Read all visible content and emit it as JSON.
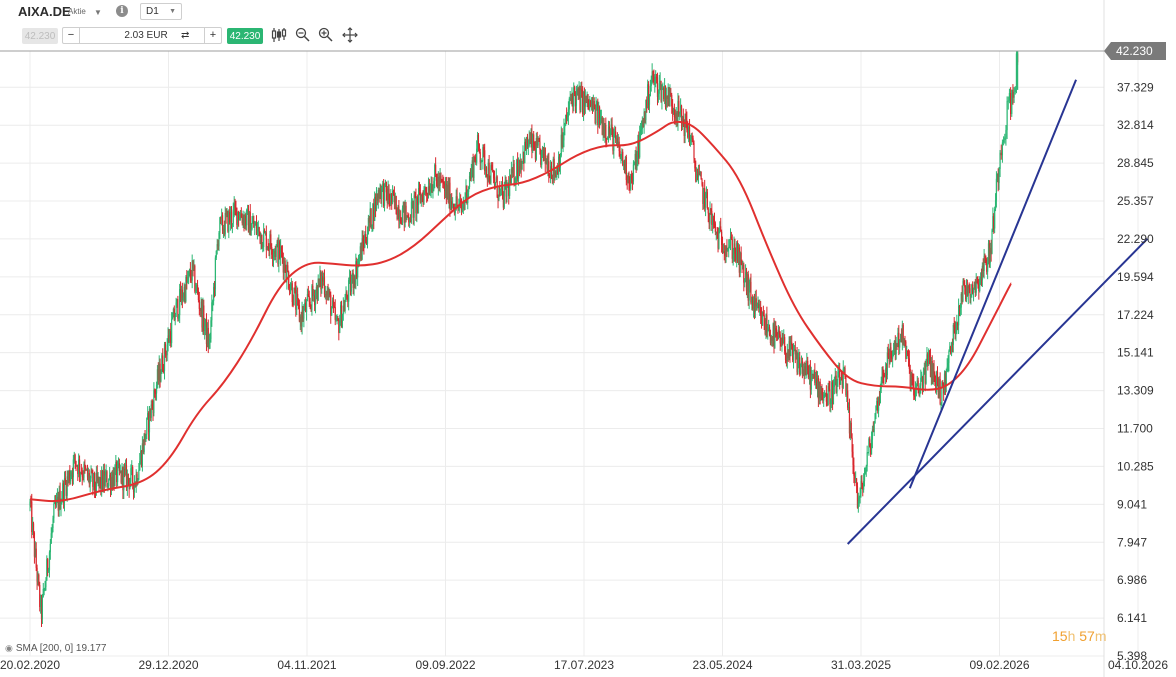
{
  "header": {
    "symbol": "AIXA.DE",
    "symbol_type": "Aktie",
    "timeframe": "D1",
    "info_icon": "info-icon",
    "sell_price": "42.230",
    "quantity": "2.03 EUR",
    "buy_price": "42.230",
    "tools": [
      "candles-icon",
      "zoom-out-icon",
      "zoom-in-icon",
      "crosshair-move-icon"
    ]
  },
  "colors": {
    "up": "#2bb673",
    "down": "#d9262c",
    "sma": "#e0302f",
    "trendline": "#283593",
    "grid": "#ececec",
    "price_line": "#9e9e9e",
    "price_tag": "#7a7a7a"
  },
  "chart_data": {
    "type": "candlestick",
    "series": [
      {
        "name": "AIXA.DE",
        "type": "candlestick"
      },
      {
        "name": "SMA [200, 0]",
        "type": "line",
        "last_value": 19.177
      }
    ],
    "price_scale": "log",
    "ylim": [
      5.398,
      42.23
    ],
    "y_ticks": [
      42.23,
      37.329,
      32.814,
      28.845,
      25.357,
      22.29,
      19.594,
      17.224,
      15.141,
      13.309,
      11.7,
      10.285,
      9.041,
      7.947,
      6.986,
      6.141,
      5.398
    ],
    "x_ticks": [
      "20.02.2020",
      "29.12.2020",
      "04.11.2021",
      "09.09.2022",
      "17.07.2023",
      "23.05.2024",
      "31.03.2025",
      "09.02.2026",
      "04.10.2026"
    ],
    "last_price": "42.230",
    "close_path": [
      [
        "2020-02-20",
        9.0
      ],
      [
        "2020-03-16",
        6.2
      ],
      [
        "2020-04-15",
        8.8
      ],
      [
        "2020-06-01",
        10.5
      ],
      [
        "2020-07-15",
        9.6
      ],
      [
        "2020-09-01",
        10.0
      ],
      [
        "2020-10-15",
        9.8
      ],
      [
        "2020-12-01",
        13.5
      ],
      [
        "2021-01-15",
        17.5
      ],
      [
        "2021-02-20",
        20.0
      ],
      [
        "2021-03-30",
        15.5
      ],
      [
        "2021-04-20",
        23.0
      ],
      [
        "2021-06-01",
        24.5
      ],
      [
        "2021-07-15",
        23.0
      ],
      [
        "2021-09-10",
        21.0
      ],
      [
        "2021-10-20",
        17.0
      ],
      [
        "2021-12-10",
        19.5
      ],
      [
        "2022-01-10",
        16.5
      ],
      [
        "2022-02-20",
        20.0
      ],
      [
        "2022-04-15",
        26.5
      ],
      [
        "2022-06-15",
        24.0
      ],
      [
        "2022-08-15",
        27.5
      ],
      [
        "2022-10-15",
        24.5
      ],
      [
        "2022-11-20",
        30.5
      ],
      [
        "2023-01-15",
        25.5
      ],
      [
        "2023-03-15",
        31.0
      ],
      [
        "2023-05-15",
        28.0
      ],
      [
        "2023-06-20",
        36.5
      ],
      [
        "2023-08-01",
        35.0
      ],
      [
        "2023-09-20",
        31.5
      ],
      [
        "2023-11-01",
        27.0
      ],
      [
        "2023-12-15",
        38.5
      ],
      [
        "2024-01-25",
        36.0
      ],
      [
        "2024-03-10",
        32.0
      ],
      [
        "2024-03-25",
        28.0
      ],
      [
        "2024-05-10",
        22.5
      ],
      [
        "2024-06-20",
        21.5
      ],
      [
        "2024-08-05",
        17.5
      ],
      [
        "2024-09-15",
        16.0
      ],
      [
        "2024-11-15",
        14.5
      ],
      [
        "2025-01-15",
        13.0
      ],
      [
        "2025-02-20",
        14.0
      ],
      [
        "2025-03-25",
        9.0
      ],
      [
        "2025-04-20",
        11.0
      ],
      [
        "2025-05-20",
        14.2
      ],
      [
        "2025-07-01",
        16.2
      ],
      [
        "2025-08-01",
        13.0
      ],
      [
        "2025-09-01",
        14.7
      ],
      [
        "2025-10-01",
        13.1
      ],
      [
        "2025-11-15",
        18.6
      ],
      [
        "2025-12-20",
        19.2
      ],
      [
        "2026-01-20",
        21.5
      ],
      [
        "2026-02-10",
        30.0
      ],
      [
        "2026-02-25",
        35.5
      ],
      [
        "2026-03-05",
        36.0
      ],
      [
        "2026-03-12",
        42.23
      ]
    ],
    "sma_path": [
      [
        "2020-02-20",
        9.2
      ],
      [
        "2020-05-01",
        9.1
      ],
      [
        "2020-08-01",
        9.5
      ],
      [
        "2020-11-01",
        9.7
      ],
      [
        "2021-01-01",
        10.5
      ],
      [
        "2021-03-01",
        12.3
      ],
      [
        "2021-05-01",
        13.6
      ],
      [
        "2021-07-01",
        15.7
      ],
      [
        "2021-09-01",
        19.0
      ],
      [
        "2021-11-01",
        20.6
      ],
      [
        "2022-01-01",
        20.5
      ],
      [
        "2022-03-01",
        20.3
      ],
      [
        "2022-05-01",
        20.6
      ],
      [
        "2022-07-01",
        21.7
      ],
      [
        "2022-09-01",
        23.7
      ],
      [
        "2022-11-01",
        25.8
      ],
      [
        "2023-01-01",
        26.7
      ],
      [
        "2023-03-01",
        26.9
      ],
      [
        "2023-05-01",
        28.0
      ],
      [
        "2023-07-01",
        29.7
      ],
      [
        "2023-09-01",
        30.7
      ],
      [
        "2023-11-01",
        30.6
      ],
      [
        "2024-01-01",
        32.2
      ],
      [
        "2024-02-01",
        33.3
      ],
      [
        "2024-03-15",
        33.0
      ],
      [
        "2024-05-01",
        30.7
      ],
      [
        "2024-07-01",
        27.5
      ],
      [
        "2024-09-01",
        21.7
      ],
      [
        "2024-11-01",
        17.6
      ],
      [
        "2025-01-01",
        15.4
      ],
      [
        "2025-03-01",
        13.8
      ],
      [
        "2025-05-01",
        13.5
      ],
      [
        "2025-07-01",
        13.5
      ],
      [
        "2025-09-01",
        13.3
      ],
      [
        "2025-10-15",
        13.5
      ],
      [
        "2025-12-01",
        14.5
      ],
      [
        "2026-01-15",
        16.5
      ],
      [
        "2026-03-01",
        19.177
      ]
    ],
    "trendlines": [
      {
        "from": [
          "2025-03-01",
          7.9
        ],
        "to": [
          "2026-10-20",
          22.3
        ]
      },
      {
        "from": [
          "2025-07-20",
          9.55
        ],
        "to": [
          "2026-06-20",
          38.3
        ]
      }
    ]
  },
  "legend": {
    "sma_label": "SMA [200, 0] 19.177",
    "eye_icon": "eye-icon"
  },
  "countdown": {
    "hours": "15",
    "hours_unit": "h",
    "minutes": "57",
    "minutes_unit": "m"
  }
}
